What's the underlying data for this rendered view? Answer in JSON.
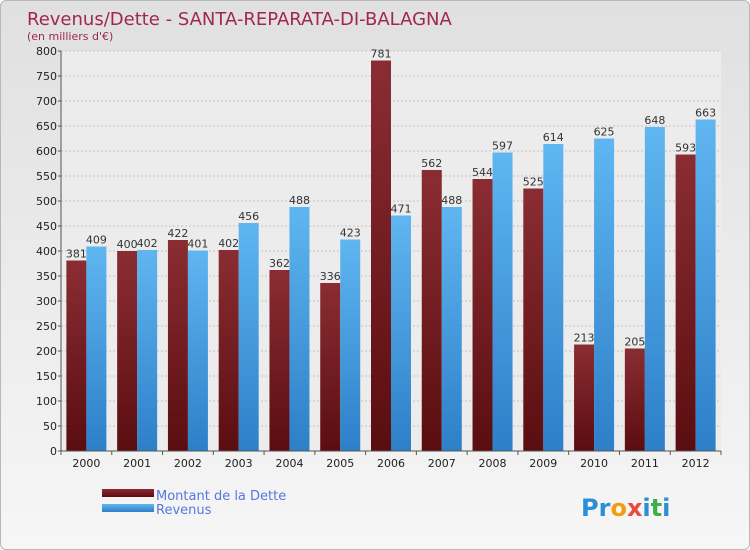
{
  "chart_data": {
    "type": "bar",
    "title": "Revenus/Dette - SANTA-REPARATA-DI-BALAGNA",
    "subtitle": "(en milliers d'€)",
    "categories": [
      "2000",
      "2001",
      "2002",
      "2003",
      "2004",
      "2005",
      "2006",
      "2007",
      "2008",
      "2009",
      "2010",
      "2011",
      "2012"
    ],
    "series": [
      {
        "name": "Montant de la Dette",
        "color": "#7a1e22",
        "values": [
          381,
          400,
          422,
          402,
          362,
          336,
          781,
          562,
          544,
          525,
          213,
          205,
          593
        ]
      },
      {
        "name": "Revenus",
        "color": "#4aa3e8",
        "values": [
          409,
          402,
          401,
          456,
          488,
          423,
          471,
          488,
          597,
          614,
          625,
          648,
          663
        ]
      }
    ],
    "yticks": [
      0,
      50,
      100,
      150,
      200,
      250,
      300,
      350,
      400,
      450,
      500,
      550,
      600,
      650,
      700,
      750,
      800
    ],
    "ylim": [
      0,
      800
    ],
    "grid": true,
    "legend_position": "bottom-left"
  },
  "logo": {
    "text": "Proxiti",
    "letter_colors": [
      "#2a8fd6",
      "#2a8fd6",
      "#f39c12",
      "#e74c3c",
      "#2a8fd6",
      "#3fae49",
      "#2a8fd6"
    ]
  }
}
